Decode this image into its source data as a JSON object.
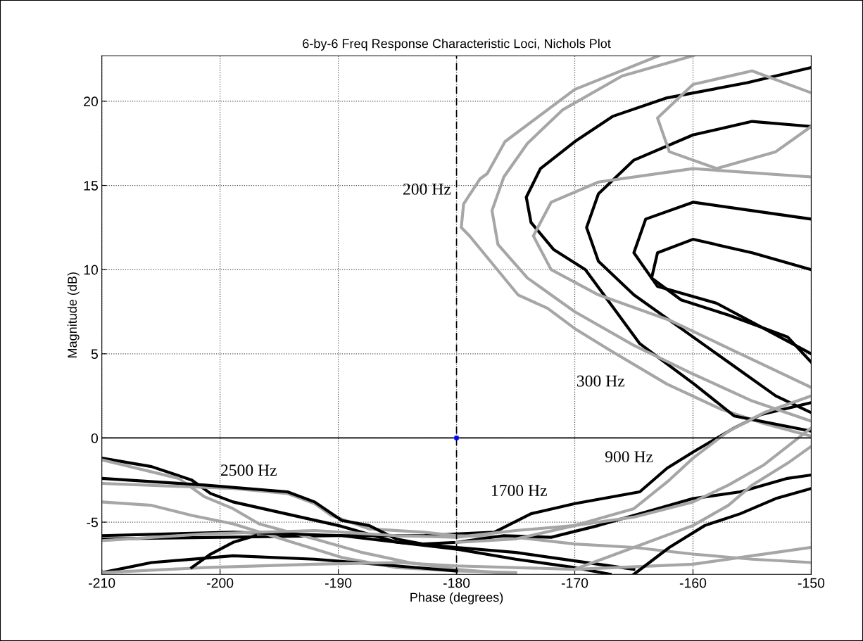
{
  "chart_data": {
    "type": "line",
    "title": "6-by-6 Freq Response Characteristic Loci, Nichols Plot",
    "xlabel": "Phase (degrees)",
    "ylabel": "Magnitude (dB)",
    "xlim": [
      -210,
      -150
    ],
    "ylim": [
      -8.1,
      22.7
    ],
    "xticks": [
      -210,
      -200,
      -190,
      -180,
      -170,
      -160,
      -150
    ],
    "yticks": [
      -5,
      0,
      5,
      10,
      15,
      20
    ],
    "grid": true,
    "line_style": "solid",
    "marker": "none",
    "ref_lines": [
      {
        "axis": "y",
        "value": 0,
        "color": "#000000",
        "line_style": "solid"
      },
      {
        "axis": "x",
        "value": -180,
        "color": "#000000",
        "line_style": "dashed"
      }
    ],
    "annotations": [
      "200 Hz",
      "300 Hz",
      "900 Hz",
      "1700 Hz",
      "2500 Hz"
    ],
    "series": [
      {
        "color": "#a6a6a6",
        "x": [
          -162.9,
          -170,
          -175.9,
          -177.4,
          -178,
          -179.4,
          -179.6,
          -178.9,
          -174.8,
          -172.3,
          -170,
          -167,
          -162.2,
          -157.6,
          -154.2,
          -150
        ],
        "values": [
          22.7,
          20.7,
          17.6,
          15.7,
          15.4,
          13.9,
          12.5,
          12.0,
          8.5,
          7.7,
          6.5,
          5.2,
          3.2,
          1.7,
          0.9,
          0.1
        ]
      },
      {
        "color": "#000000",
        "x": [
          -210,
          -200,
          -190,
          -185,
          -182.8,
          -180,
          -176.8,
          -173.7,
          -170,
          -164.5,
          -162.2,
          -159.9,
          -156.5,
          -154.2,
          -150
        ],
        "values": [
          -6.0,
          -5.9,
          -5.8,
          -5.8,
          -5.8,
          -5.7,
          -5.6,
          -4.5,
          -3.9,
          -3.2,
          -1.8,
          -0.8,
          0.6,
          1.4,
          2.1
        ]
      },
      {
        "color": "#000000",
        "x": [
          -150,
          -155.4,
          -162.2,
          -166.8,
          -170,
          -172.9,
          -174.1,
          -173.7,
          -171.8,
          -169.1,
          -164.5,
          -159.9,
          -156.5,
          -150
        ],
        "values": [
          22.0,
          21.1,
          20.2,
          19.1,
          17.6,
          16.0,
          14.3,
          12.8,
          11.2,
          10.0,
          5.6,
          3.2,
          1.3,
          0.4
        ]
      },
      {
        "color": "#000000",
        "x": [
          -210,
          -205.8,
          -202.4,
          -200.8,
          -198.9,
          -190,
          -185,
          -180,
          -175,
          -170,
          -165
        ],
        "values": [
          -1.2,
          -1.7,
          -2.5,
          -3.3,
          -3.8,
          -5.2,
          -6.2,
          -6.5,
          -6.8,
          -7.3,
          -7.8
        ]
      },
      {
        "color": "#a6a6a6",
        "x": [
          -210,
          -203.5,
          -201.3,
          -198.9,
          -196.7,
          -192,
          -188,
          -184,
          -180,
          -175
        ],
        "values": [
          -1.3,
          -2.4,
          -3.5,
          -4.2,
          -5.1,
          -6.0,
          -6.8,
          -7.4,
          -7.8,
          -8.1
        ]
      },
      {
        "color": "#a6a6a6",
        "x": [
          -210,
          -198.9,
          -194.3,
          -192,
          -190.6,
          -187.4,
          -182.8,
          -180,
          -175,
          -170,
          -165,
          -160,
          -155,
          -150
        ],
        "values": [
          -2.7,
          -3.0,
          -3.3,
          -3.9,
          -4.6,
          -5.4,
          -5.6,
          -5.8,
          -5.9,
          -6.3,
          -6.5,
          -6.9,
          -7.2,
          -7.4
        ]
      },
      {
        "color": "#000000",
        "x": [
          -210,
          -201.3,
          -194.3,
          -192,
          -189.7,
          -187.4,
          -185.1,
          -182.8,
          -180,
          -176,
          -172,
          -168,
          -164,
          -160,
          -156,
          -152,
          -150
        ],
        "values": [
          -2.4,
          -2.8,
          -3.2,
          -3.8,
          -4.9,
          -5.2,
          -6.0,
          -6.3,
          -6.2,
          -5.8,
          -5.9,
          -5.2,
          -4.4,
          -3.6,
          -3.2,
          -2.4,
          -2.2
        ]
      },
      {
        "color": "#a6a6a6",
        "x": [
          -210,
          -205.8,
          -202.4,
          -198.9,
          -194.3,
          -189.7,
          -185.1,
          -180,
          -175
        ],
        "values": [
          -3.8,
          -4.0,
          -4.6,
          -5.1,
          -6.1,
          -7.1,
          -7.7,
          -7.9,
          -8.0
        ]
      },
      {
        "color": "#000000",
        "x": [
          -210,
          -198.9,
          -189.7,
          -185,
          -180,
          -175,
          -170,
          -167
        ],
        "values": [
          -5.8,
          -5.6,
          -5.8,
          -6.2,
          -6.6,
          -7.2,
          -7.7,
          -8.1
        ]
      },
      {
        "color": "#a6a6a6",
        "x": [
          -210,
          -201.3,
          -192,
          -185.1,
          -180,
          -175,
          -170,
          -165,
          -160,
          -157,
          -154,
          -152,
          -150
        ],
        "values": [
          -6.1,
          -5.7,
          -5.5,
          -5.8,
          -5.9,
          -5.5,
          -5.2,
          -4.7,
          -3.8,
          -2.8,
          -1.6,
          -0.5,
          0.6
        ]
      },
      {
        "color": "#000000",
        "x": [
          -210,
          -205.8,
          -198.9,
          -192,
          -185.1,
          -180
        ],
        "values": [
          -8.0,
          -7.4,
          -7.0,
          -7.2,
          -7.6,
          -7.9
        ]
      },
      {
        "color": "#a6a6a6",
        "x": [
          -210,
          -201.3,
          -192,
          -185,
          -180,
          -170,
          -160,
          -155,
          -150
        ],
        "values": [
          -8.0,
          -7.7,
          -7.5,
          -7.4,
          -7.6,
          -7.8,
          -7.5,
          -7.0,
          -6.5
        ]
      },
      {
        "color": "#000000",
        "x": [
          -202.4,
          -200.8,
          -198.9,
          -197
        ],
        "values": [
          -7.7,
          -6.9,
          -6.2,
          -5.8
        ]
      },
      {
        "color": "#a6a6a6",
        "x": [
          -160,
          -166,
          -171,
          -174,
          -176,
          -177,
          -176.5,
          -174,
          -170,
          -165,
          -160,
          -155,
          -150
        ],
        "values": [
          22.7,
          21.5,
          19.5,
          17.5,
          15.5,
          13.5,
          11.5,
          9.5,
          7.5,
          5.5,
          3.8,
          2.2,
          1.0
        ]
      },
      {
        "color": "#000000",
        "x": [
          -150,
          -155,
          -160,
          -165,
          -168,
          -169,
          -168,
          -165,
          -161,
          -157,
          -153,
          -150
        ],
        "values": [
          18.5,
          18.8,
          18.0,
          16.5,
          14.5,
          12.5,
          10.5,
          8.5,
          6.5,
          4.5,
          2.5,
          1.5
        ]
      },
      {
        "color": "#a6a6a6",
        "x": [
          -150,
          -160,
          -168,
          -172,
          -173.5,
          -172,
          -168,
          -162,
          -156,
          -150
        ],
        "values": [
          15.5,
          16.0,
          15.2,
          14.0,
          12.0,
          10.0,
          8.5,
          7.0,
          5.0,
          3.0
        ]
      },
      {
        "color": "#000000",
        "x": [
          -150,
          -155,
          -160,
          -164,
          -165,
          -163,
          -158,
          -154,
          -150
        ],
        "values": [
          13.0,
          13.5,
          14.0,
          13.0,
          11.0,
          9.0,
          8.0,
          6.5,
          5.0
        ]
      },
      {
        "color": "#a6a6a6",
        "x": [
          -150,
          -155,
          -160,
          -163,
          -162,
          -158,
          -153,
          -150
        ],
        "values": [
          20.5,
          21.8,
          21.0,
          19.0,
          17.0,
          16.0,
          17.0,
          18.5
        ]
      },
      {
        "color": "#000000",
        "x": [
          -150,
          -155,
          -160,
          -163,
          -163.5,
          -161,
          -157,
          -152,
          -150
        ],
        "values": [
          10.0,
          11.0,
          11.8,
          11.0,
          9.5,
          8.2,
          7.3,
          6.0,
          4.5
        ]
      },
      {
        "color": "#a6a6a6",
        "x": [
          -180,
          -175,
          -170,
          -165,
          -162,
          -160,
          -157,
          -154,
          -150
        ],
        "values": [
          -6.2,
          -6.0,
          -5.2,
          -4.2,
          -2.5,
          -1.2,
          0.4,
          1.5,
          2.5
        ]
      },
      {
        "color": "#a6a6a6",
        "x": [
          -170,
          -165,
          -160,
          -157,
          -155,
          -152,
          -150
        ],
        "values": [
          -7.8,
          -6.5,
          -5.2,
          -4.0,
          -2.8,
          -1.5,
          -0.5
        ]
      },
      {
        "color": "#000000",
        "x": [
          -165,
          -162,
          -159,
          -156,
          -153,
          -150
        ],
        "values": [
          -8.1,
          -6.5,
          -5.2,
          -4.5,
          -3.6,
          -3.0
        ]
      },
      {
        "type": "scatter",
        "color": "#0000ff",
        "marker": "square",
        "x": [
          -180
        ],
        "values": [
          0
        ]
      }
    ]
  }
}
